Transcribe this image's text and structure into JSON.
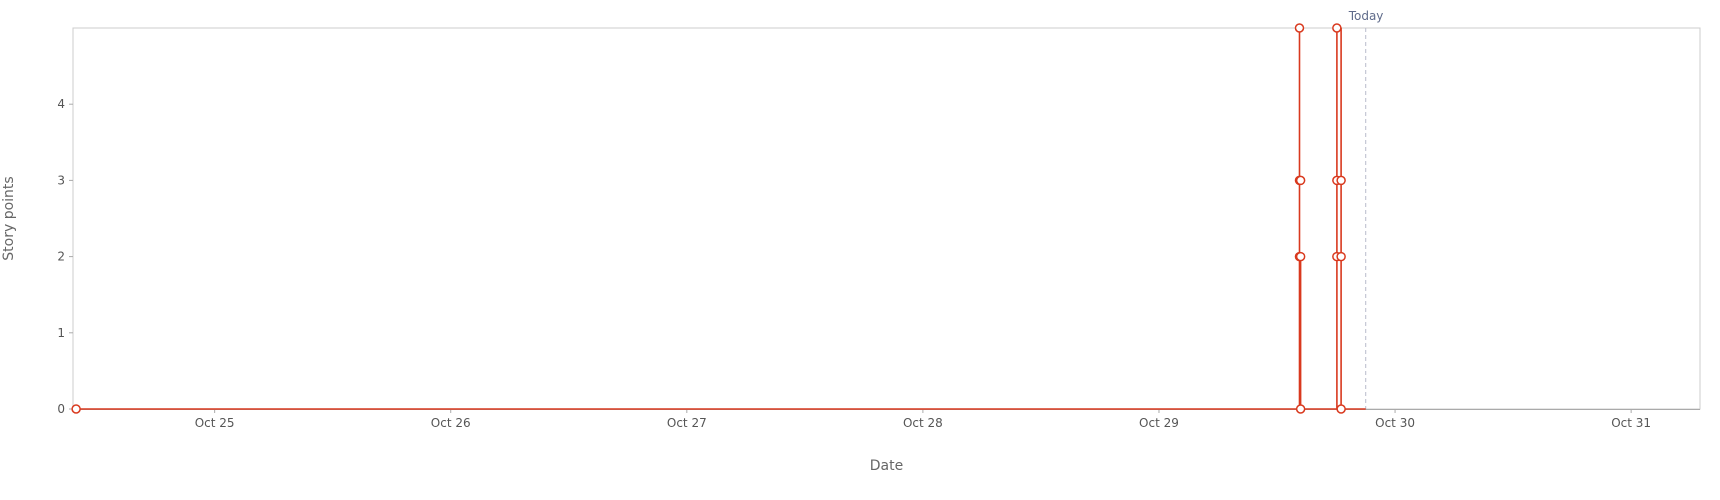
{
  "chart_data": {
    "type": "line",
    "xlabel": "Date",
    "ylabel": "Story points",
    "x_ticks": [
      "Oct 25",
      "Oct 26",
      "Oct 27",
      "Oct 28",
      "Oct 29",
      "Oct 30",
      "Oct 31"
    ],
    "y_ticks": [
      "0",
      "1",
      "2",
      "3",
      "4"
    ],
    "ylim": [
      0,
      5
    ],
    "xlim": [
      "2024-10-24 09:36",
      "2024-10-31 07:00"
    ],
    "today_marker": {
      "label": "Today",
      "x": "2024-10-29 21:01"
    },
    "grid": false,
    "legend": "none",
    "colors": {
      "series": "#d9391e",
      "axis": "#cccccc",
      "today_line": "#b8bccb"
    },
    "series": [
      {
        "points": [
          [
            "2024-10-24 09:55",
            0
          ],
          [
            "2024-10-29 14:17",
            0
          ],
          [
            "2024-10-29 14:17",
            5
          ],
          [
            "2024-10-29 14:17",
            3
          ],
          [
            "2024-10-29 14:17",
            2
          ],
          [
            "2024-10-29 14:24",
            2
          ],
          [
            "2024-10-29 14:24",
            0
          ],
          [
            "2024-10-29 18:05",
            0
          ],
          [
            "2024-10-29 18:05",
            5
          ],
          [
            "2024-10-29 18:05",
            3
          ],
          [
            "2024-10-29 18:05",
            2
          ],
          [
            "2024-10-29 18:05",
            5
          ],
          [
            "2024-10-29 18:31",
            5
          ],
          [
            "2024-10-29 18:31",
            3
          ],
          [
            "2024-10-29 18:31",
            2
          ],
          [
            "2024-10-29 18:31",
            0
          ],
          [
            "2024-10-29 21:01",
            0
          ]
        ],
        "markers": [
          [
            "2024-10-24 09:55",
            0
          ],
          [
            "2024-10-29 14:17",
            5
          ],
          [
            "2024-10-29 14:17",
            3
          ],
          [
            "2024-10-29 14:17",
            2
          ],
          [
            "2024-10-29 14:24",
            3
          ],
          [
            "2024-10-29 14:24",
            2
          ],
          [
            "2024-10-29 14:24",
            0
          ],
          [
            "2024-10-29 18:05",
            5
          ],
          [
            "2024-10-29 18:05",
            3
          ],
          [
            "2024-10-29 18:05",
            2
          ],
          [
            "2024-10-29 18:31",
            3
          ],
          [
            "2024-10-29 18:31",
            2
          ],
          [
            "2024-10-29 18:31",
            0
          ]
        ]
      }
    ]
  }
}
